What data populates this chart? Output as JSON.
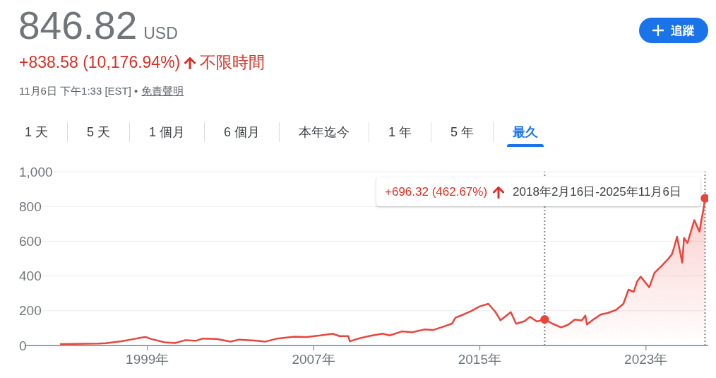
{
  "chart_data": {
    "type": "line",
    "title": "846.82 USD",
    "subtitle": "+838.58 (10,176.94%)",
    "annotations": [
      "不限時間",
      "11月6日 下午1:33 [EST] •",
      "免責聲明",
      "1 天",
      "5 天",
      "1 個月",
      "6 個月",
      "本年迄今",
      "1 年",
      "5 年",
      "最久",
      "追蹤",
      "+696.32 (462.67%)",
      "2018年2月16日-2025年11月6日"
    ],
    "series": [
      {
        "color": "#e8453c",
        "x": [
          "1994-11",
          "1996-09",
          "1997-01",
          "1997-10",
          "1998-04",
          "1998-09",
          "1998-12",
          "1999-03",
          "1999-11",
          "2000-05",
          "2000-11",
          "2001-05",
          "2001-09",
          "2002-05",
          "2003-01",
          "2003-06",
          "2004-03",
          "2004-09",
          "2005-04",
          "2006-02",
          "2006-09",
          "2007-05",
          "2007-12",
          "2008-04",
          "2008-09",
          "2008-10",
          "2009-03",
          "2009-08",
          "2009-11",
          "2010-05",
          "2010-09",
          "2011-04",
          "2011-10",
          "2012-05",
          "2012-10",
          "2013-04",
          "2013-09",
          "2013-11",
          "2014-04",
          "2014-08",
          "2015-01",
          "2015-06",
          "2015-10",
          "2016-01",
          "2016-07",
          "2016-10",
          "2017-03",
          "2017-06",
          "2017-10",
          "2018-02-16",
          "2018-07",
          "2018-12",
          "2019-04",
          "2019-08",
          "2019-12",
          "2020-02",
          "2020-03",
          "2020-07",
          "2020-11",
          "2021-03",
          "2021-08",
          "2021-12",
          "2022-03",
          "2022-06",
          "2022-08",
          "2022-10",
          "2023-03",
          "2023-06",
          "2023-10",
          "2024-02",
          "2024-04",
          "2024-05",
          "2024-07",
          "2024-10",
          "2024-11",
          "2025-01",
          "2025-05",
          "2025-08",
          "2025-09",
          "2025-10",
          "2025-11-06"
        ],
        "values": [
          8,
          11,
          13,
          24,
          35,
          45,
          49,
          38,
          18,
          14,
          31,
          27,
          40,
          38,
          22,
          34,
          28,
          22,
          40,
          51,
          49,
          58,
          68,
          54,
          54,
          24,
          40,
          52,
          58,
          68,
          58,
          81,
          76,
          92,
          89,
          108,
          126,
          160,
          180,
          198,
          225,
          240,
          194,
          145,
          192,
          125,
          140,
          165,
          138,
          150,
          126,
          104,
          119,
          149,
          144,
          172,
          121,
          152,
          179,
          187,
          206,
          240,
          321,
          309,
          369,
          396,
          335,
          418,
          457,
          500,
          524,
          553,
          626,
          477,
          619,
          590,
          721,
          655,
          720,
          768,
          847
        ]
      },
      {
        "type": "scatter",
        "color": "#e8453c",
        "marker": "circle",
        "x": [
          "2018-02-16",
          "2025-11-06"
        ],
        "values": [
          150,
          847
        ]
      }
    ],
    "xlim": [
      "1993-03",
      "2026-01"
    ],
    "xticks": [
      {
        "value": "1999",
        "label": "1999年"
      },
      {
        "value": "2007",
        "label": "2007年"
      },
      {
        "value": "2015",
        "label": "2015年"
      },
      {
        "value": "2023",
        "label": "2023年"
      }
    ],
    "ylim": [
      0,
      1000
    ],
    "yticks": [
      0,
      200,
      400,
      600,
      800,
      {
        "value": 1000,
        "label": "1,000"
      }
    ],
    "grid": "y",
    "ref_lines": [
      {
        "axis": "x",
        "value": "2018-02-16",
        "color": "#80868b",
        "line_style": "dotted"
      },
      {
        "axis": "x",
        "value": "2025-11-06",
        "color": "#80868b",
        "line_style": "dotted"
      }
    ],
    "bands": [
      {
        "axis": "x",
        "from": "2018-02-16",
        "to": "2025-11-06",
        "color": "#e8453c"
      }
    ]
  }
}
